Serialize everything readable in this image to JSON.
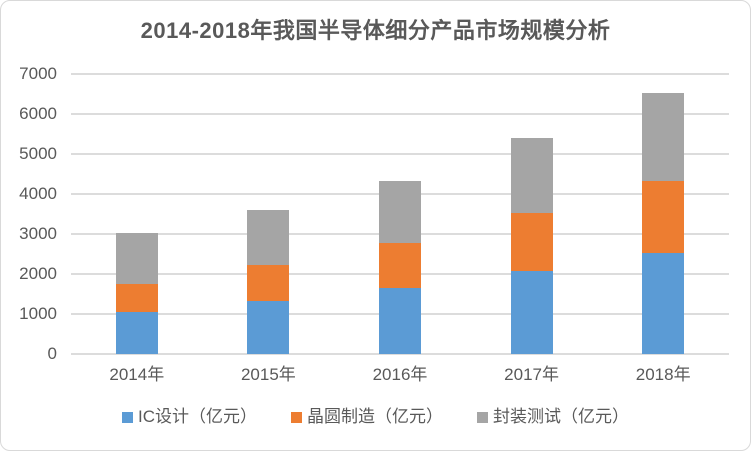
{
  "chart_data": {
    "type": "bar",
    "stacked": true,
    "title": "2014-2018年我国半导体细分产品市场规模分析",
    "xlabel": "",
    "ylabel": "",
    "categories": [
      "2014年",
      "2015年",
      "2016年",
      "2017年",
      "2018年"
    ],
    "series": [
      {
        "name": "IC设计（亿元）",
        "color": "#5B9BD5",
        "values": [
          1047.4,
          1325.0,
          1644.3,
          2073.5,
          2519.3
        ]
      },
      {
        "name": "晶圆制造（亿元）",
        "color": "#ED7D31",
        "values": [
          712.1,
          900.8,
          1126.9,
          1448.1,
          1818.2
        ]
      },
      {
        "name": "封装测试（亿元）",
        "color": "#A5A5A5",
        "values": [
          1256.2,
          1384.0,
          1564.3,
          1889.7,
          2193.9
        ]
      }
    ],
    "totals": [
      3015.7,
      3609.8,
      4335.5,
      5411.3,
      6531.4
    ],
    "ylim": [
      0,
      7000
    ],
    "yticks": [
      0,
      1000,
      2000,
      3000,
      4000,
      5000,
      6000,
      7000
    ],
    "grid": true,
    "legend_position": "bottom"
  },
  "colors": {
    "grid": "#DCDCDC",
    "axis_text": "#595959",
    "title_text": "#595959",
    "frame_border": "#D9D9D9",
    "background": "#FFFFFF"
  }
}
